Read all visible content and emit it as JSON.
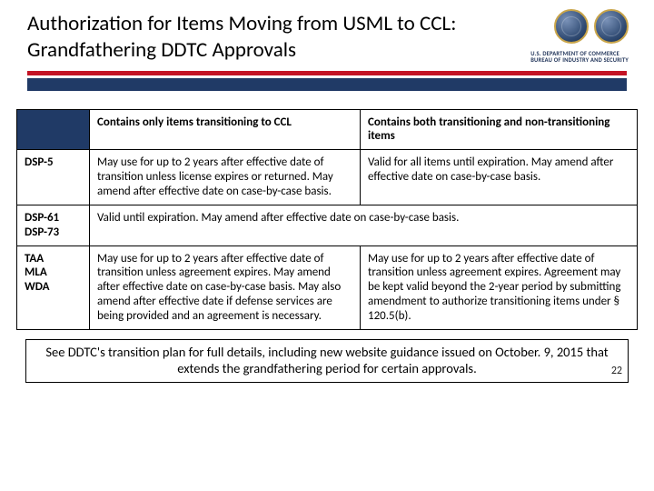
{
  "colors": {
    "red_bar": "#c41425",
    "blue_bar": "#203a66",
    "seal_gold": "#c9a54a",
    "seal_navy": "#2f4a72",
    "text": "#000000",
    "bg": "#ffffff"
  },
  "header": {
    "title": "Authorization for Items Moving from USML to CCL: Grandfathering DDTC Approvals",
    "agency_line1": "U.S. DEPARTMENT OF COMMERCE",
    "agency_line2": "BUREAU OF INDUSTRY AND SECURITY"
  },
  "table": {
    "col_headers": [
      "Contains only items transitioning to CCL",
      "Contains both transitioning and non-transitioning items"
    ],
    "rows": [
      {
        "label": "DSP-5",
        "c1": "May use for up to 2 years after effective date of transition unless license expires or returned.  May amend after effective date on case-by-case basis.",
        "c2": "Valid for all items until expiration.  May amend after effective date on case-by-case basis."
      },
      {
        "label": "DSP-61\nDSP-73",
        "span": "Valid until expiration.  May amend after effective date on case-by-case basis."
      },
      {
        "label": "TAA\nMLA\nWDA",
        "c1": "May use for up to 2 years after effective date of transition unless agreement expires.  May amend after effective date on case-by-case basis.  May also amend after effective date if defense services are being provided and an agreement is necessary.",
        "c2": "May use for up to 2 years after effective date of transition unless agreement expires.  Agreement may be kept valid beyond the 2-year period by submitting amendment to authorize transitioning items under § 120.5(b)."
      }
    ]
  },
  "footnote": "See DDTC's transition plan for full details, including new website guidance issued on October. 9, 2015 that extends the grandfathering period for certain approvals.",
  "page_number": "22"
}
